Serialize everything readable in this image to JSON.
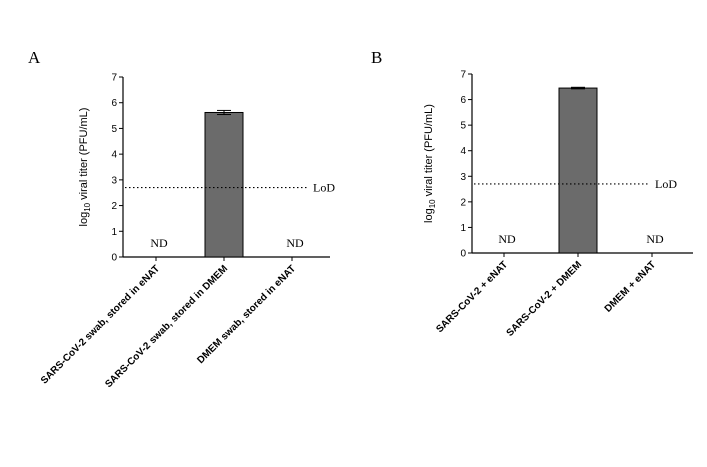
{
  "chart_data": [
    {
      "type": "bar",
      "panel_label": "A",
      "ylabel_main": "log",
      "ylabel_sub": "10",
      "ylabel_rest": " viral titer (PFU/mL)",
      "ylim": [
        0,
        7
      ],
      "yticks": [
        "0",
        "1",
        "2",
        "3",
        "4",
        "5",
        "6",
        "7"
      ],
      "categories": [
        "SARS-CoV-2 swab, stored in eNAT",
        "SARS-CoV-2 swab, stored in DMEM",
        "DMEM swab, stored in eNAT"
      ],
      "values": [
        null,
        5.62,
        null
      ],
      "errors": [
        null,
        0.08,
        null
      ],
      "value_labels": [
        "ND",
        "",
        "ND"
      ],
      "reference_line": {
        "value": 2.7,
        "label": "LoD"
      },
      "bar_color": "#6b6b6b"
    },
    {
      "type": "bar",
      "panel_label": "B",
      "ylabel_main": "log",
      "ylabel_sub": "10",
      "ylabel_rest": " viral titer (PFU/mL)",
      "ylim": [
        0,
        7
      ],
      "yticks": [
        "0",
        "1",
        "2",
        "3",
        "4",
        "5",
        "6",
        "7"
      ],
      "categories": [
        "SARS-CoV-2  + eNAT",
        "SARS-CoV-2 + DMEM",
        "DMEM + eNAT"
      ],
      "values": [
        null,
        6.45,
        null
      ],
      "errors": [
        null,
        0.03,
        null
      ],
      "value_labels": [
        "ND",
        "",
        "ND"
      ],
      "reference_line": {
        "value": 2.7,
        "label": "LoD"
      },
      "bar_color": "#6b6b6b"
    }
  ]
}
